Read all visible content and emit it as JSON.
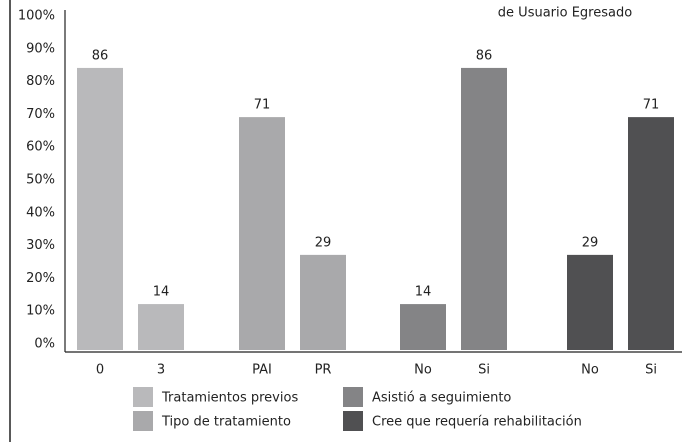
{
  "chart_data": {
    "type": "bar",
    "title": "de Usuario Egresado",
    "series": [
      {
        "name": "Tratamientos previos",
        "color": "#b9b9bb",
        "categories": [
          "0",
          "3"
        ],
        "values": [
          86,
          14
        ]
      },
      {
        "name": "Tipo de tratamiento",
        "color": "#a9a9ab",
        "categories": [
          "PAI",
          "PR"
        ],
        "values": [
          71,
          29
        ]
      },
      {
        "name": "Asistió a seguimiento",
        "color": "#848486",
        "categories": [
          "No",
          "Si"
        ],
        "values": [
          14,
          86
        ]
      },
      {
        "name": "Cree que requería rehabilitación",
        "color": "#505052",
        "categories": [
          "No",
          "Si"
        ],
        "values": [
          29,
          71
        ]
      }
    ],
    "ylim": [
      0,
      100
    ],
    "yticks": [
      {
        "value": 0,
        "label": "0%"
      },
      {
        "value": 10,
        "label": "10%"
      },
      {
        "value": 20,
        "label": "20%"
      },
      {
        "value": 30,
        "label": "30%"
      },
      {
        "value": 40,
        "label": "40%"
      },
      {
        "value": 50,
        "label": "50%"
      },
      {
        "value": 60,
        "label": "60%"
      },
      {
        "value": 70,
        "label": "70%"
      },
      {
        "value": 80,
        "label": "80%"
      },
      {
        "value": 90,
        "label": "90%"
      },
      {
        "value": 100,
        "label": "100%"
      }
    ],
    "grid": false
  }
}
